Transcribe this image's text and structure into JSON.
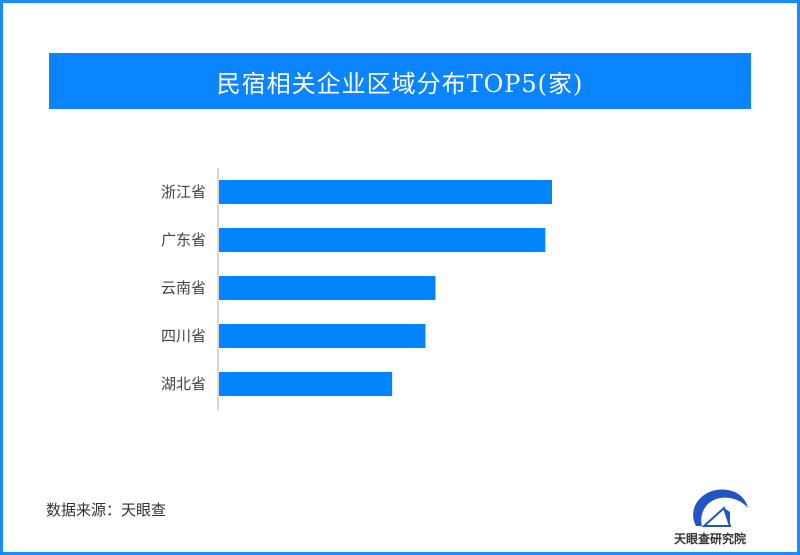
{
  "chart_data": {
    "type": "bar",
    "orientation": "horizontal",
    "title": "民宿相关企业区域分布TOP5(家)",
    "categories": [
      "浙江省",
      "广东省",
      "云南省",
      "四川省",
      "湖北省"
    ],
    "values": [
      100,
      98,
      65,
      62,
      52
    ],
    "xlim": [
      0,
      100
    ],
    "grid": false,
    "bar_color": "#0085ff"
  },
  "footer": {
    "source": "数据来源：天眼查",
    "logo_text": "天眼查研究院"
  },
  "colors": {
    "frame": "#1a8cff",
    "title_bg": "#0a84ff"
  }
}
